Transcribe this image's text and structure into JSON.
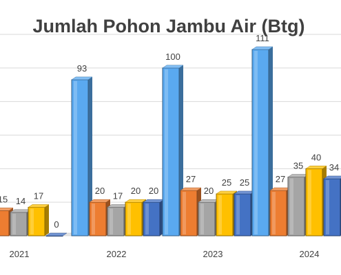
{
  "chart_data": {
    "type": "bar",
    "title": "Jumlah Pohon Jambu Air (Btg)",
    "categories": [
      "2021",
      "2022",
      "2023",
      "2024"
    ],
    "series": [
      {
        "color": "#5aa9f0",
        "values": [
          null,
          93,
          100,
          111
        ]
      },
      {
        "color": "#ed7d31",
        "values": [
          15,
          20,
          27,
          27
        ]
      },
      {
        "color": "#a5a5a5",
        "values": [
          14,
          17,
          20,
          35
        ]
      },
      {
        "color": "#ffc000",
        "values": [
          17,
          20,
          25,
          40
        ]
      },
      {
        "color": "#4472c4",
        "values": [
          0,
          20,
          25,
          34
        ]
      }
    ],
    "ylim": [
      0,
      120
    ],
    "grid": true,
    "legend": "none"
  }
}
